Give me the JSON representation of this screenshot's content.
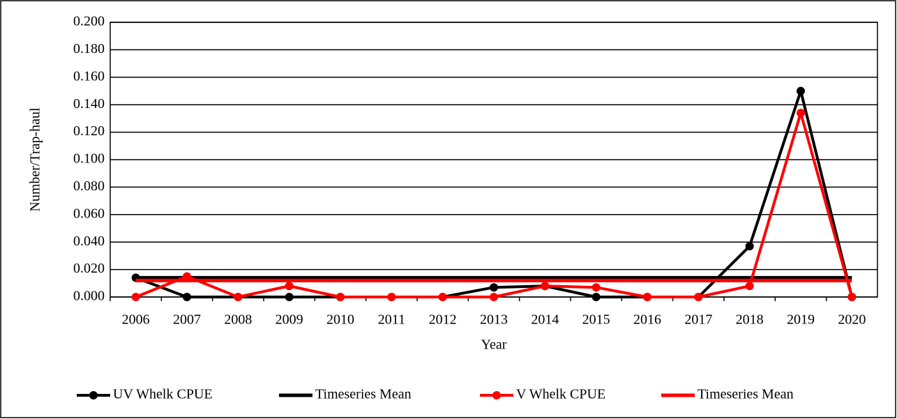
{
  "chart_data": {
    "type": "line",
    "x_label": "Year",
    "y_label": "Number/Trap-haul",
    "categories": [
      "2006",
      "2007",
      "2008",
      "2009",
      "2010",
      "2011",
      "2012",
      "2013",
      "2014",
      "2015",
      "2016",
      "2017",
      "2018",
      "2019",
      "2020"
    ],
    "series": [
      {
        "name": "UV Whelk CPUE",
        "color": "#000000",
        "markers": true,
        "values": [
          0.014,
          0,
          0,
          0,
          0,
          0,
          0,
          0.007,
          0.008,
          0,
          0,
          0,
          0.037,
          0.15,
          0
        ]
      },
      {
        "name": "Timeseries Mean",
        "color": "#000000",
        "markers": false,
        "values": [
          0.014,
          0.014,
          0.014,
          0.014,
          0.014,
          0.014,
          0.014,
          0.014,
          0.014,
          0.014,
          0.014,
          0.014,
          0.014,
          0.014,
          0.014
        ]
      },
      {
        "name": "V Whelk CPUE",
        "color": "#ff0000",
        "markers": true,
        "values": [
          0,
          0.015,
          0,
          0.008,
          0,
          0,
          0,
          0,
          0.008,
          0.007,
          0,
          0,
          0.008,
          0.134,
          0
        ]
      },
      {
        "name": "Timeseries Mean",
        "color": "#ff0000",
        "markers": false,
        "values": [
          0.012,
          0.012,
          0.012,
          0.012,
          0.012,
          0.012,
          0.012,
          0.012,
          0.012,
          0.012,
          0.012,
          0.012,
          0.012,
          0.012,
          0.012
        ]
      }
    ],
    "ylim": [
      0,
      0.2
    ],
    "yticks": [
      {
        "value": 0,
        "label": "0.000"
      },
      {
        "value": 0.02,
        "label": "0.020"
      },
      {
        "value": 0.04,
        "label": "0.040"
      },
      {
        "value": 0.06,
        "label": "0.060"
      },
      {
        "value": 0.08,
        "label": "0.080"
      },
      {
        "value": 0.1,
        "label": "0.100"
      },
      {
        "value": 0.12,
        "label": "0.120"
      },
      {
        "value": 0.14,
        "label": "0.140"
      },
      {
        "value": 0.16,
        "label": "0.160"
      },
      {
        "value": 0.18,
        "label": "0.180"
      },
      {
        "value": 0.2,
        "label": "0.200"
      }
    ],
    "grid": true,
    "legend": "bottom"
  }
}
